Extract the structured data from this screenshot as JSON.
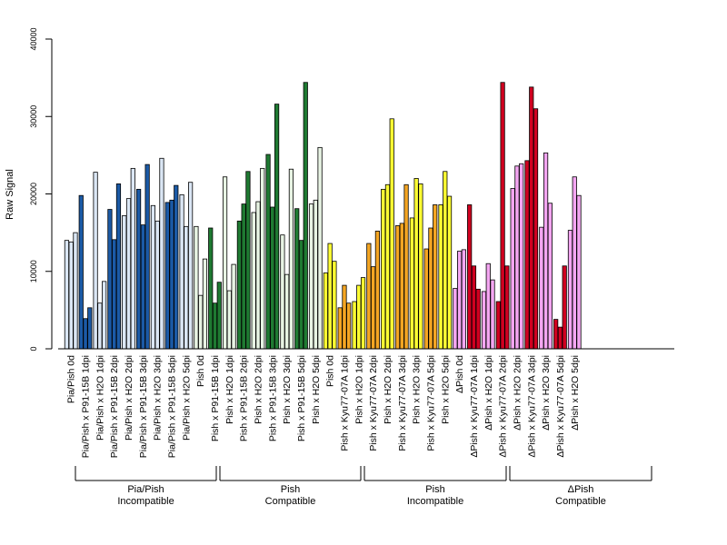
{
  "chart_data": {
    "type": "bar",
    "ylabel": "Raw Signal",
    "ylim": [
      0,
      40000
    ],
    "yticks": [
      0,
      10000,
      20000,
      30000,
      40000
    ],
    "grid": false,
    "legend": "none",
    "categories": [
      "Pia/Pish 0d",
      "Pia/Pish x P91-15B 1dpi",
      "Pia/Pish x H2O 1dpi",
      "Pia/Pish x P91-15B 2dpi",
      "Pia/Pish x H2O 2dpi",
      "Pia/Pish x P91-15B 3dpi",
      "Pia/Pish x H2O 3dpi",
      "Pia/Pish x P91-15B 5dpi",
      "Pia/Pish x H2O 5dpi",
      "Pish 0d",
      "Pish x P91-15B 1dpi",
      "Pish x H2O 1dpi",
      "Pish x P91-15B 2dpi",
      "Pish x H2O 2dpi",
      "Pish x P91-15B 3dpi",
      "Pish x H2O 3dpi",
      "Pish x P91-15B 5dpi",
      "Pish x H2O 5dpi",
      "Pish 0d",
      "Pish x Kyu77-07A 1dpi",
      "Pish x H2O 1dpi",
      "Pish x Kyu77-07A 2dpi",
      "Pish x H2O 2dpi",
      "Pish x Kyu77-07A 3dpi",
      "Pish x H2O 3dpi",
      "Pish x Kyu77-07A 5dpi",
      "Pish x H2O 5dpi",
      "ΔPish 0d",
      "ΔPish x Kyu77-07A 1dpi",
      "ΔPish x H2O 1dpi",
      "ΔPish x Kyu77-07A 2dpi",
      "ΔPish x H2O 2dpi",
      "ΔPish x Kyu77-07A 3dpi",
      "ΔPish x H2O 3dpi",
      "ΔPish x Kyu77-07A 5dpi",
      "ΔPish x H2O 5dpi"
    ],
    "values": [
      [
        14000,
        13800,
        15000
      ],
      [
        19800,
        3900,
        5300
      ],
      [
        22800,
        5900,
        8700
      ],
      [
        18000,
        14100,
        21300
      ],
      [
        17200,
        19400,
        23300
      ],
      [
        20600,
        16000,
        23800
      ],
      [
        18500,
        16500,
        24600
      ],
      [
        18900,
        19200,
        21100
      ],
      [
        19900,
        15800,
        21500
      ],
      [
        15800,
        6900,
        11600
      ],
      [
        15600,
        5900,
        8600
      ],
      [
        22200,
        7500,
        10900
      ],
      [
        16500,
        18700,
        22900
      ],
      [
        17600,
        19000,
        23300
      ],
      [
        25100,
        18300,
        31600
      ],
      [
        14700,
        9600,
        23200
      ],
      [
        18100,
        14000,
        34400
      ],
      [
        18700,
        19200,
        26000
      ],
      [
        9800,
        13600,
        11300
      ],
      [
        5300,
        8200,
        5900
      ],
      [
        6100,
        8200,
        9200
      ],
      [
        13600,
        10600,
        15200
      ],
      [
        20600,
        21200,
        29700
      ],
      [
        15900,
        16200,
        21200
      ],
      [
        16900,
        22000,
        21300
      ],
      [
        12900,
        15600,
        18600
      ],
      [
        18600,
        22900,
        19700
      ],
      [
        7800,
        12600,
        12800
      ],
      [
        18600,
        10700,
        7700
      ],
      [
        7400,
        11000,
        8900
      ],
      [
        6100,
        34400,
        10700
      ],
      [
        20700,
        23600,
        23900
      ],
      [
        24300,
        33800,
        31000
      ],
      [
        15700,
        25300,
        18800
      ],
      [
        3800,
        2800,
        10700
      ],
      [
        15300,
        22200,
        19800
      ]
    ],
    "group_colors": [
      [
        "#dbe7f5",
        "#1b5aa6"
      ],
      [
        "#e8f4e4",
        "#1f7a32"
      ],
      [
        "#ffff33",
        "#f5a623"
      ],
      [
        "#f4a6f2",
        "#d00020"
      ]
    ],
    "groups": [
      {
        "line1": "Pia/Pish",
        "line2": "Incompatible"
      },
      {
        "line1": "Pish",
        "line2": "Compatible"
      },
      {
        "line1": "Pish",
        "line2": "Incompatible"
      },
      {
        "line1": "ΔPish",
        "line2": "Compatible"
      }
    ]
  }
}
